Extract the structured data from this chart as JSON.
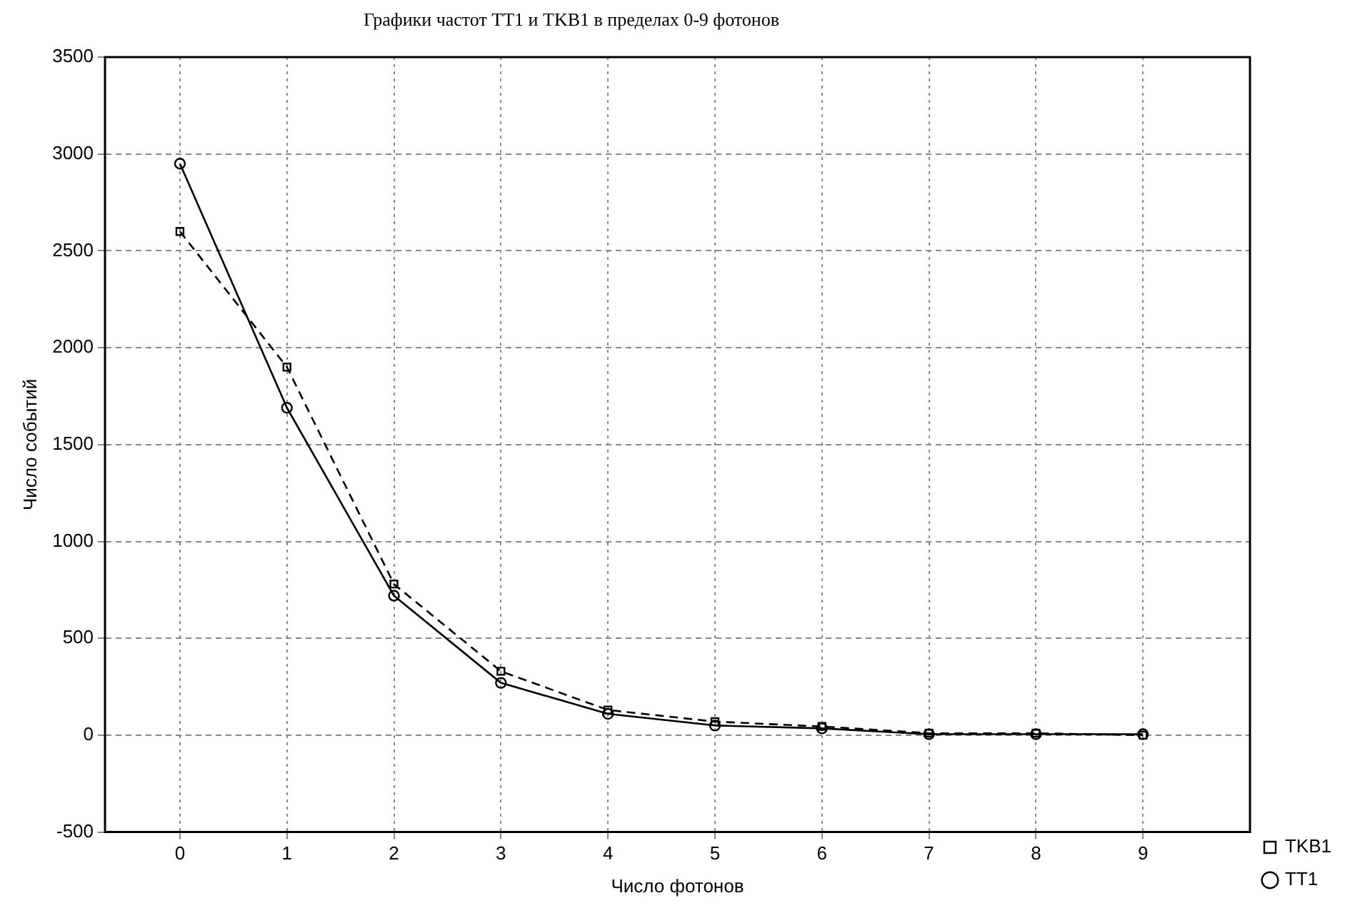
{
  "chart_data": {
    "type": "line",
    "title": "Графики частот TT1 и TKB1 в пределах 0-9 фотонов",
    "xlabel": "Число фотонов",
    "ylabel": "Число событий",
    "x": [
      0,
      1,
      2,
      3,
      4,
      5,
      6,
      7,
      8,
      9
    ],
    "xlim": [
      -0.7,
      10
    ],
    "xticks": [
      0,
      1,
      2,
      3,
      4,
      5,
      6,
      7,
      8,
      9
    ],
    "ylim": [
      -500,
      3500
    ],
    "yticks": [
      -500,
      0,
      500,
      1000,
      1500,
      2000,
      2500,
      3000,
      3500
    ],
    "grid": true,
    "legend": "bottom right",
    "series": [
      {
        "name": "TT1",
        "color": "#000000",
        "marker": "circle",
        "line_style": "solid",
        "values": [
          2950,
          1690,
          720,
          270,
          110,
          50,
          35,
          5,
          5,
          5
        ]
      },
      {
        "name": "TKB1",
        "color": "#000000",
        "marker": "square",
        "line_style": "dashed",
        "values": [
          2600,
          1900,
          780,
          330,
          130,
          70,
          45,
          10,
          10,
          0
        ]
      }
    ]
  }
}
